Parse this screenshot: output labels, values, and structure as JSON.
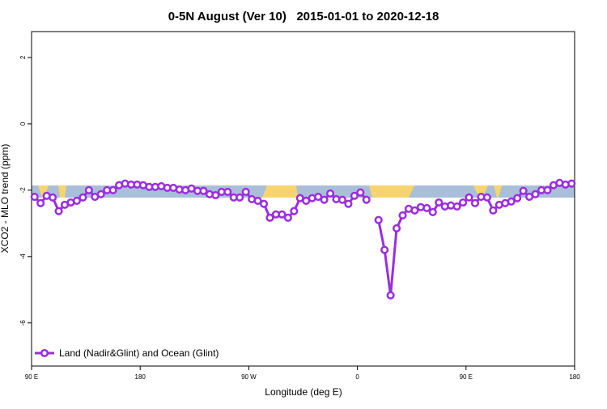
{
  "chart_data": {
    "type": "line",
    "title": "0-5N August (Ver 10)   2015-01-01 to 2020-12-18",
    "x_label": "Longitude (deg E)",
    "y_label": "XCO2 - MLO trend (ppm)",
    "xlim": [
      90,
      540
    ],
    "ylim": [
      -7.3,
      2.78
    ],
    "xticks": [
      {
        "value": 90,
        "label": "90 E"
      },
      180,
      {
        "value": 270,
        "label": "90 W"
      },
      {
        "value": 360,
        "label": "0"
      },
      {
        "value": 450,
        "label": "90 E"
      },
      {
        "value": 540,
        "label": "180"
      }
    ],
    "yticks": [
      2,
      0,
      -2,
      -4,
      -6
    ],
    "legend": "bottom left",
    "x": [
      92.5,
      97.5,
      102.5,
      107.5,
      112.5,
      117.5,
      122.5,
      127.5,
      132.5,
      137.5,
      142.5,
      147.5,
      152.5,
      157.5,
      162.5,
      167.5,
      172.5,
      177.5,
      182.5,
      187.5,
      192.5,
      197.5,
      202.5,
      207.5,
      212.5,
      217.5,
      222.5,
      227.5,
      232.5,
      237.5,
      242.5,
      247.5,
      252.5,
      257.5,
      262.5,
      267.5,
      272.5,
      277.5,
      282.5,
      287.5,
      292.5,
      297.5,
      302.5,
      307.5,
      312.5,
      317.5,
      322.5,
      327.5,
      332.5,
      337.5,
      342.5,
      347.5,
      352.5,
      357.5,
      362.5,
      367.5,
      372.5,
      377.5,
      382.5,
      387.5,
      392.5,
      397.5,
      402.5,
      407.5,
      412.5,
      417.5,
      422.5,
      427.5,
      432.5,
      437.5,
      442.5,
      447.5,
      452.5,
      457.5,
      462.5,
      467.5,
      472.5,
      477.5,
      482.5,
      487.5,
      492.5,
      497.5,
      502.5,
      507.5,
      512.5,
      517.5,
      522.5,
      527.5,
      532.5,
      537.5
    ],
    "series": [
      {
        "name": "Land (Nadir&Glint) and Ocean (Glint)",
        "color": "#9b2de0",
        "values": [
          -2.2,
          -2.39,
          -2.17,
          -2.22,
          -2.63,
          -2.44,
          -2.37,
          -2.32,
          -2.22,
          -2.0,
          -2.2,
          -2.12,
          -2.0,
          -2.0,
          -1.85,
          -1.8,
          -1.83,
          -1.83,
          -1.85,
          -1.9,
          -1.9,
          -1.88,
          -1.93,
          -1.93,
          -1.98,
          -2.0,
          -1.95,
          -2.02,
          -2.02,
          -2.12,
          -2.15,
          -2.05,
          -2.05,
          -2.22,
          -2.22,
          -2.05,
          -2.27,
          -2.32,
          -2.41,
          -2.83,
          -2.73,
          -2.73,
          -2.83,
          -2.63,
          -2.24,
          -2.32,
          -2.24,
          -2.2,
          -2.29,
          -2.1,
          -2.27,
          -2.29,
          -2.41,
          -2.17,
          -2.07,
          -2.29,
          null,
          -2.9,
          -3.8,
          -5.17,
          -3.15,
          -2.76,
          -2.56,
          -2.61,
          -2.51,
          -2.54,
          -2.66,
          -2.37,
          -2.49,
          -2.46,
          -2.49,
          -2.37,
          -2.22,
          -2.39,
          -2.2,
          -2.22,
          -2.61,
          -2.44,
          -2.39,
          -2.34,
          -2.24,
          -2.02,
          -2.2,
          -2.12,
          -2.0,
          -2.0,
          -1.85,
          -1.78,
          -1.83,
          -1.8
        ]
      }
    ]
  }
}
